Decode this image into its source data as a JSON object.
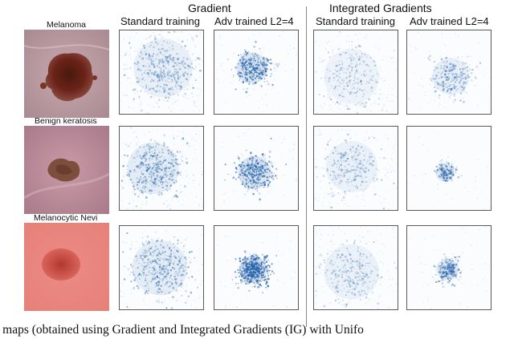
{
  "headers": {
    "gradient": "Gradient",
    "integrated_gradients": "Integrated Gradients",
    "standard_training": "Standard training",
    "adv_trained": "Adv trained L2=4"
  },
  "rows": [
    {
      "label": "Melanoma"
    },
    {
      "label": "Benign keratosis"
    },
    {
      "label": "Melanocytic Nevi"
    }
  ],
  "caption": "ency maps (obtained using Gradient and Integrated Gradients (IG) with Unifo",
  "colors": {
    "saliency": "#1f5fa8",
    "divider": "#8a8a8a"
  }
}
